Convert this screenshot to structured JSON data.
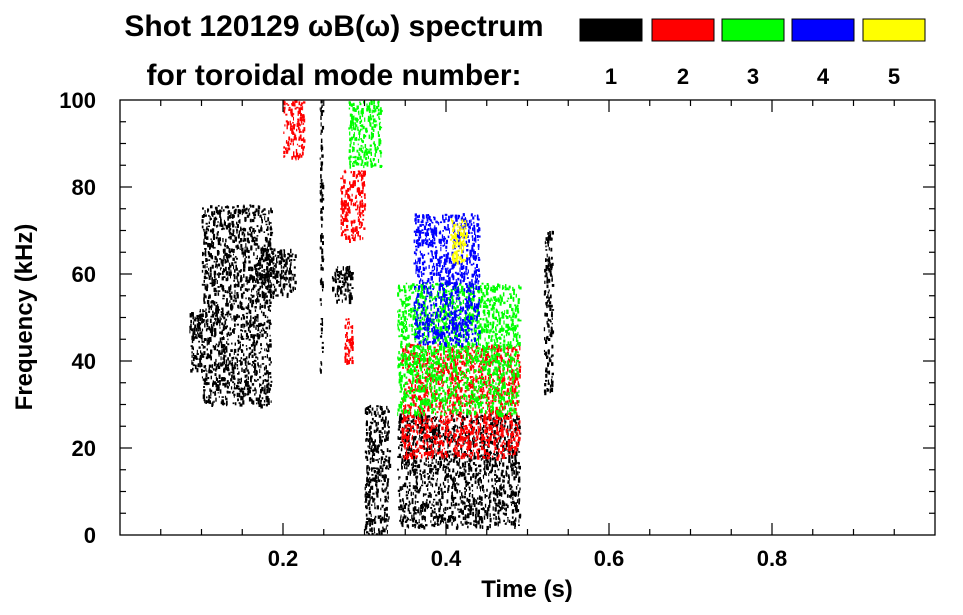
{
  "chart_data": {
    "type": "scatter",
    "title_line1": "Shot 120129 ωB(ω) spectrum",
    "title_line2": "for toroidal mode number:",
    "xlabel": "Time (s)",
    "ylabel": "Frequency (kHz)",
    "xlim": [
      0.0,
      1.0
    ],
    "ylim": [
      0,
      100
    ],
    "xticks": [
      0.2,
      0.4,
      0.6,
      0.8
    ],
    "xtick_labels": [
      "0.2",
      "0.4",
      "0.6",
      "0.8"
    ],
    "yticks": [
      0,
      20,
      40,
      60,
      80,
      100
    ],
    "ytick_labels": [
      "0",
      "20",
      "40",
      "60",
      "80",
      "100"
    ],
    "legend": [
      {
        "label": "1",
        "color": "#000000"
      },
      {
        "label": "2",
        "color": "#ff0000"
      },
      {
        "label": "3",
        "color": "#00ff00"
      },
      {
        "label": "4",
        "color": "#0000ff"
      },
      {
        "label": "5",
        "color": "#ffff00"
      }
    ],
    "series": [
      {
        "name": "1",
        "color": "#000000",
        "regions": [
          {
            "t": [
              0.085,
              0.1
            ],
            "f": [
              38,
              52
            ]
          },
          {
            "t": [
              0.1,
              0.185
            ],
            "f": [
              30,
              76
            ]
          },
          {
            "t": [
              0.17,
              0.215
            ],
            "f": [
              55,
              66
            ]
          },
          {
            "t": [
              0.245,
              0.248
            ],
            "f": [
              38,
              100
            ]
          },
          {
            "t": [
              0.26,
              0.285
            ],
            "f": [
              54,
              62
            ]
          },
          {
            "t": [
              0.3,
              0.33
            ],
            "f": [
              0,
              30
            ]
          },
          {
            "t": [
              0.34,
              0.49
            ],
            "f": [
              2,
              28
            ]
          },
          {
            "t": [
              0.52,
              0.53
            ],
            "f": [
              33,
              70
            ]
          }
        ]
      },
      {
        "name": "2",
        "color": "#ff0000",
        "regions": [
          {
            "t": [
              0.2,
              0.225
            ],
            "f": [
              87,
              100
            ]
          },
          {
            "t": [
              0.27,
              0.3
            ],
            "f": [
              68,
              84
            ]
          },
          {
            "t": [
              0.275,
              0.285
            ],
            "f": [
              40,
              50
            ]
          },
          {
            "t": [
              0.345,
              0.49
            ],
            "f": [
              18,
              44
            ]
          }
        ]
      },
      {
        "name": "3",
        "color": "#00ff00",
        "regions": [
          {
            "t": [
              0.28,
              0.32
            ],
            "f": [
              85,
              100
            ]
          },
          {
            "t": [
              0.34,
              0.49
            ],
            "f": [
              28,
              58
            ]
          }
        ]
      },
      {
        "name": "4",
        "color": "#0000ff",
        "regions": [
          {
            "t": [
              0.36,
              0.44
            ],
            "f": [
              44,
              74
            ]
          }
        ]
      },
      {
        "name": "5",
        "color": "#ffff00",
        "regions": [
          {
            "t": [
              0.405,
              0.425
            ],
            "f": [
              63,
              73
            ]
          }
        ]
      }
    ]
  }
}
